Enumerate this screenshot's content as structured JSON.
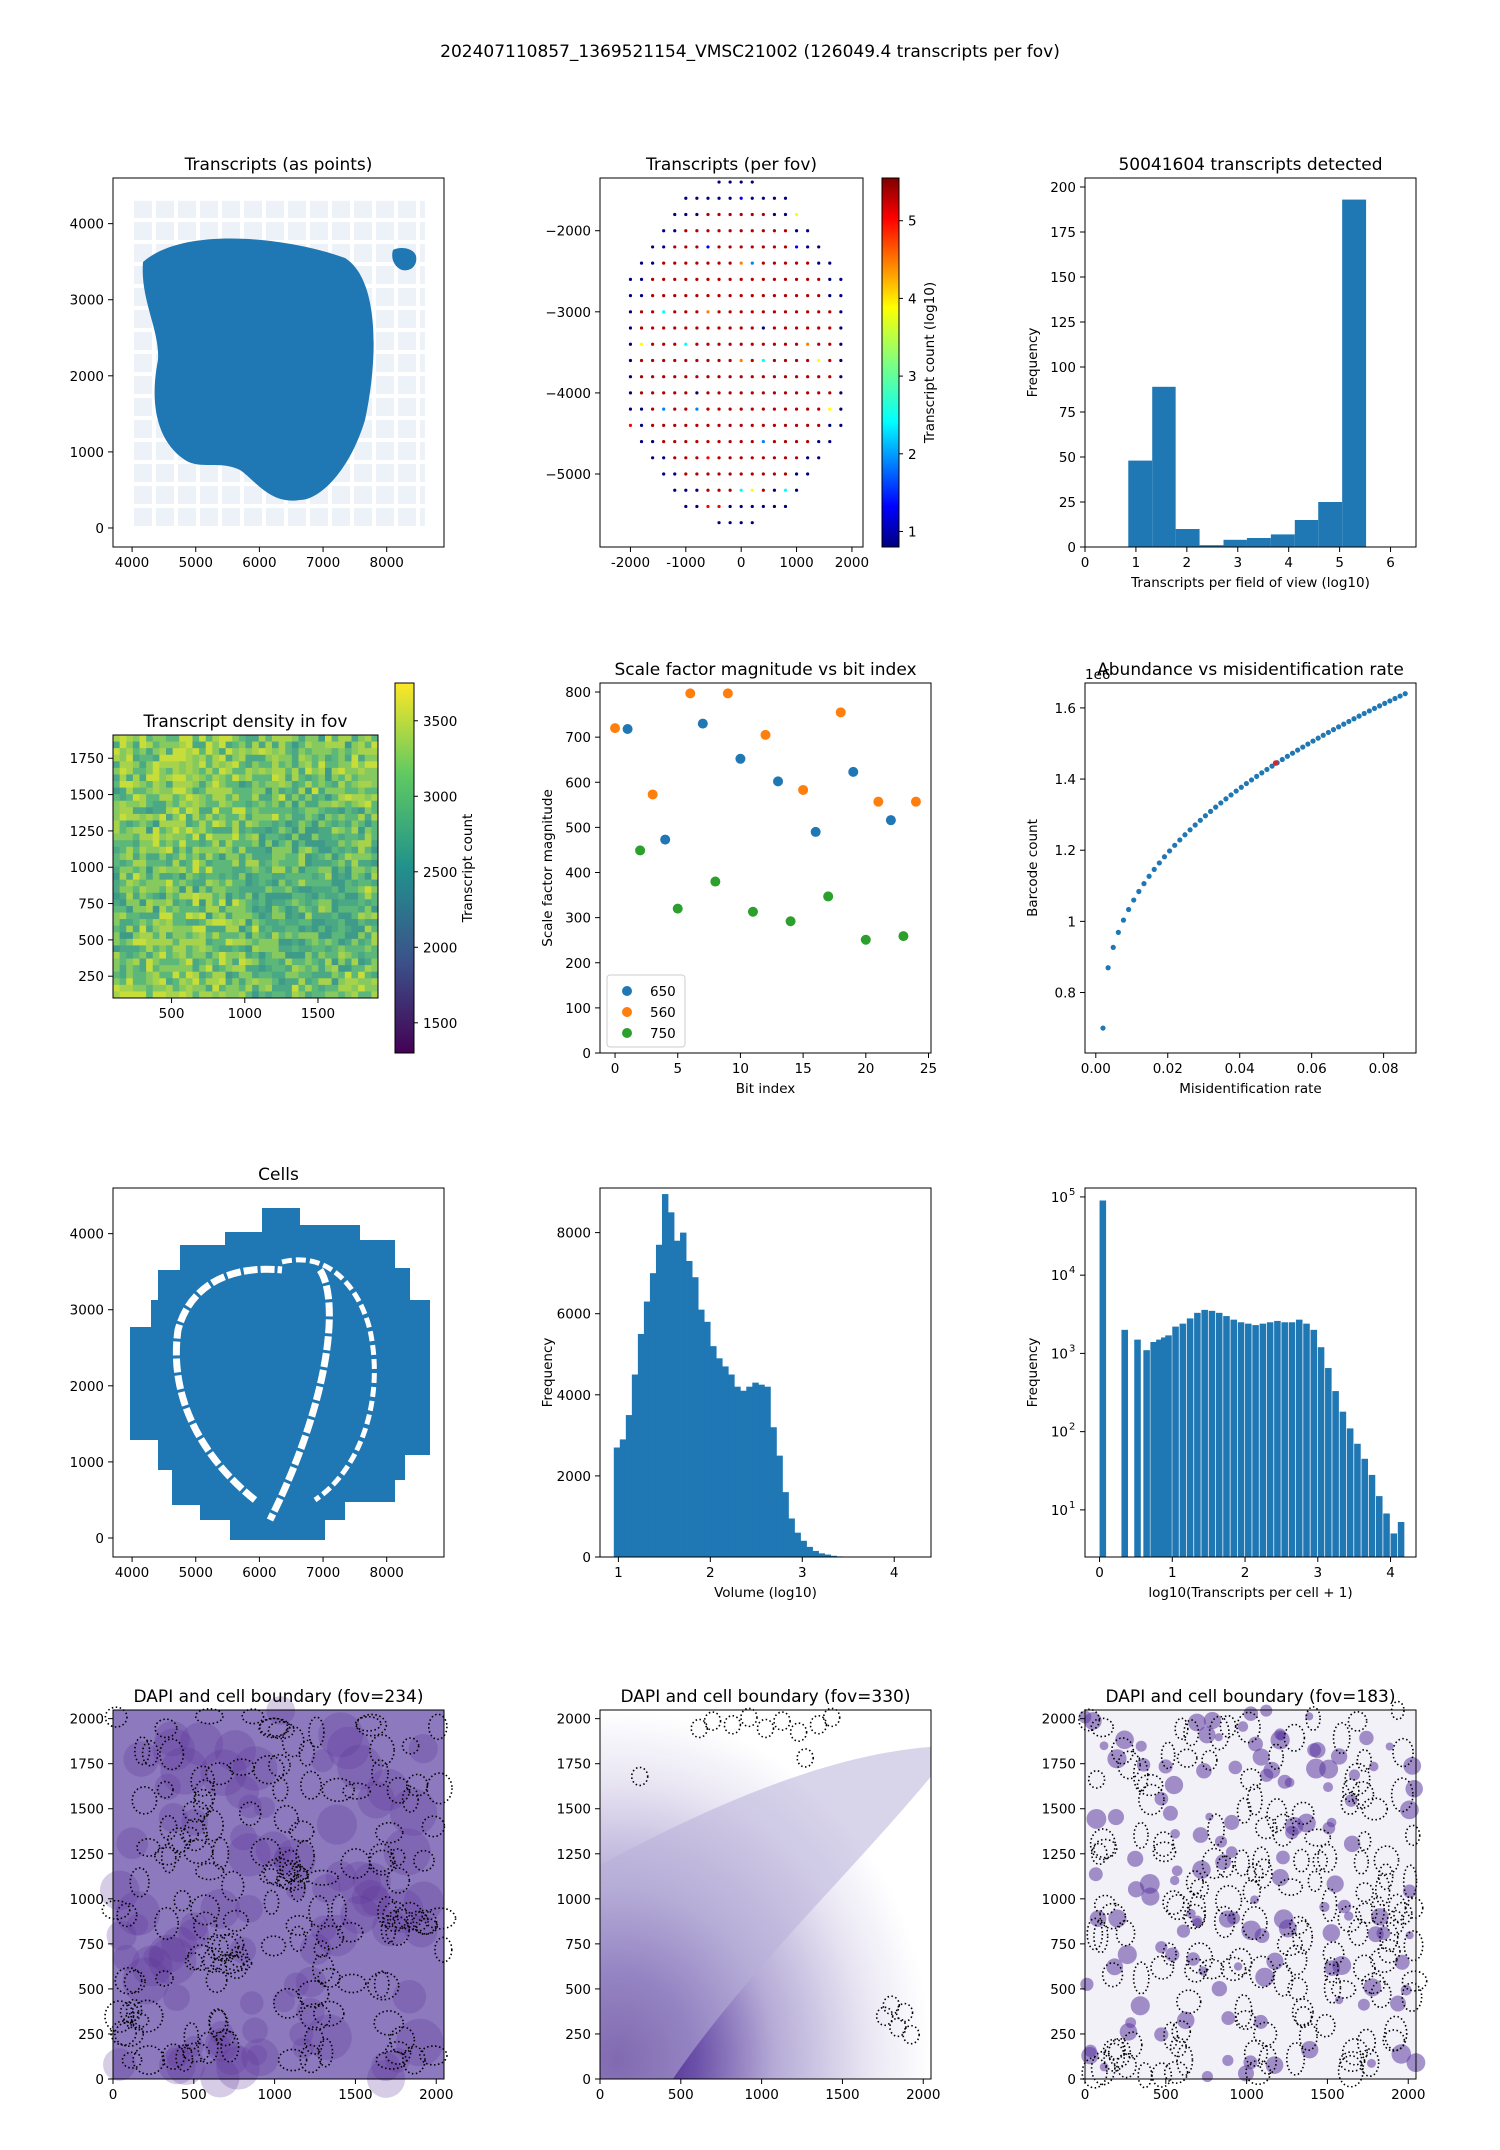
{
  "suptitle": "202407110857_1369521154_VMSC21002 (126049.4 transcripts per fov)",
  "colors": {
    "blue": "#1f77b4",
    "orange": "#ff7f0e",
    "green": "#2ca02c",
    "red": "#d62728",
    "purple": "#4b1d8a"
  },
  "chart_data": [
    {
      "type": "scatter",
      "id": "transcripts_points",
      "title": "Transcripts (as points)",
      "xlim": [
        3700,
        8900
      ],
      "ylim": [
        -250,
        4600
      ],
      "xticks": [
        4000,
        5000,
        6000,
        7000,
        8000
      ],
      "yticks": [
        0,
        1000,
        2000,
        3000,
        4000
      ],
      "region": "dense blob of transcripts centered near (6300, 2200), radius ~1800 with faint tile grid 4000-8600 x 0-4300; small detached patch near (8200, 3550)"
    },
    {
      "type": "scatter",
      "id": "transcripts_per_fov",
      "title": "Transcripts (per fov)",
      "xlim": [
        -2550,
        2200
      ],
      "ylim": [
        -5900,
        -1350
      ],
      "xticks": [
        -2000,
        -1000,
        0,
        1000,
        2000
      ],
      "yticks": [
        -5000,
        -4000,
        -3000,
        -2000
      ],
      "colorbar": {
        "label": "Transcript count (log10)",
        "range": [
          0.8,
          5.55
        ],
        "ticks": [
          1,
          2,
          3,
          4,
          5
        ],
        "cmap": "jet"
      },
      "grid": {
        "x_start": -2200,
        "x_step": 200,
        "y_start": -5600,
        "y_step": 200,
        "center": [
          -100,
          -3500
        ],
        "radius_x": 2100,
        "radius_y": 2130
      },
      "value_rule": "core fovs ~5.3 (red); outer ring fovs ~1 (blue); scattered intermediate values"
    },
    {
      "type": "bar",
      "id": "fov_histogram",
      "title": "50041604 transcripts detected",
      "xlabel": "Transcripts per field of view (log10)",
      "ylabel": "Frequency",
      "xlim": [
        0,
        6.5
      ],
      "ylim": [
        0,
        205
      ],
      "xticks": [
        0,
        1,
        2,
        3,
        4,
        5,
        6
      ],
      "yticks": [
        0,
        25,
        50,
        75,
        100,
        125,
        150,
        175,
        200
      ],
      "bin_edges": [
        0.85,
        1.32,
        1.78,
        2.25,
        2.72,
        3.18,
        3.65,
        4.12,
        4.58,
        5.05,
        5.52
      ],
      "values": [
        48,
        89,
        10,
        1,
        4,
        5,
        7,
        15,
        25,
        193
      ]
    },
    {
      "type": "heatmap",
      "id": "density_in_fov",
      "title": "Transcript density in fov",
      "xlim": [
        100,
        1910
      ],
      "ylim": [
        100,
        1910
      ],
      "xticks": [
        500,
        1000,
        1500
      ],
      "yticks": [
        250,
        500,
        750,
        1000,
        1250,
        1500,
        1750
      ],
      "colorbar": {
        "label": "Transcript count",
        "range": [
          1300,
          3750
        ],
        "ticks": [
          1500,
          2000,
          2500,
          3000,
          3500
        ],
        "cmap": "viridis"
      },
      "mean_value": 3100
    },
    {
      "type": "scatter",
      "id": "scale_factor",
      "title": "Scale factor magnitude vs bit index",
      "xlabel": "Bit index",
      "ylabel": "Scale factor magnitude",
      "xlim": [
        -1.2,
        25.2
      ],
      "ylim": [
        0,
        820
      ],
      "xticks": [
        0,
        5,
        10,
        15,
        20,
        25
      ],
      "yticks": [
        0,
        100,
        200,
        300,
        400,
        500,
        600,
        700,
        800
      ],
      "legend_position": "lower-left",
      "series": [
        {
          "name": "650",
          "x": [
            1,
            4,
            7,
            10,
            13,
            16,
            19,
            22
          ],
          "y": [
            718,
            473,
            730,
            652,
            602,
            490,
            623,
            516
          ]
        },
        {
          "name": "560",
          "x": [
            0,
            3,
            6,
            9,
            12,
            15,
            18,
            21,
            24
          ],
          "y": [
            720,
            573,
            797,
            797,
            705,
            583,
            755,
            557,
            557
          ]
        },
        {
          "name": "750",
          "x": [
            2,
            5,
            8,
            11,
            14,
            17,
            20,
            23
          ],
          "y": [
            449,
            320,
            380,
            313,
            292,
            347,
            251,
            259
          ]
        }
      ]
    },
    {
      "type": "scatter",
      "id": "abundance",
      "title": "Abundance vs misidentification rate",
      "xlabel": "Misidentification rate",
      "ylabel": "Barcode count",
      "offset_label": "1e6",
      "xlim": [
        -0.003,
        0.089
      ],
      "ylim": [
        0.63,
        1.67
      ],
      "xticks": [
        0.0,
        0.02,
        0.04,
        0.06,
        0.08
      ],
      "xtick_labels": [
        "0.00",
        "0.02",
        "0.04",
        "0.06",
        "0.08"
      ],
      "yticks": [
        0.8,
        1.0,
        1.2,
        1.4,
        1.6
      ],
      "highlight": {
        "x": 0.05,
        "y": 1.445
      },
      "x_range": [
        0.002,
        0.086
      ],
      "y_range": [
        0.7,
        1.64
      ]
    },
    {
      "type": "scatter",
      "id": "cells",
      "title": "Cells",
      "xlim": [
        3700,
        8900
      ],
      "ylim": [
        -250,
        4600
      ],
      "xticks": [
        4000,
        5000,
        6000,
        7000,
        8000
      ],
      "yticks": [
        0,
        1000,
        2000,
        3000,
        4000
      ],
      "region": "cell centroids on stepped footprint 4000-8600 x 0-4400 with white tissue-boundary gaps"
    },
    {
      "type": "bar",
      "id": "volume_hist",
      "title": "",
      "xlabel": "Volume (log10)",
      "ylabel": "Frequency",
      "xlim": [
        0.8,
        4.4
      ],
      "ylim": [
        0,
        9100
      ],
      "xticks": [
        1,
        2,
        3,
        4
      ],
      "yticks": [
        0,
        2000,
        4000,
        6000,
        8000
      ],
      "bin_start": 0.95,
      "bin_width": 0.0655,
      "values": [
        2700,
        2900,
        3500,
        4500,
        5500,
        6300,
        7000,
        7700,
        8950,
        8500,
        7800,
        8000,
        7300,
        6900,
        6100,
        5800,
        5200,
        4900,
        4700,
        4500,
        4200,
        4100,
        4200,
        4300,
        4250,
        4200,
        3200,
        2500,
        1600,
        950,
        600,
        400,
        250,
        150,
        90,
        60,
        30,
        15,
        8,
        4,
        2,
        1
      ]
    },
    {
      "type": "bar",
      "id": "transcripts_per_cell",
      "title": "",
      "xlabel": "log10(Transcripts per cell + 1)",
      "ylabel": "Frequency",
      "yscale": "log",
      "xlim": [
        -0.2,
        4.35
      ],
      "ylim": [
        2.5,
        130000
      ],
      "xticks": [
        0,
        1,
        2,
        3,
        4
      ],
      "yticks": [
        10,
        100,
        1000,
        10000,
        100000
      ],
      "ytick_labels": [
        "10",
        "10",
        "10",
        "10",
        "10"
      ],
      "ytick_exps": [
        "1",
        "2",
        "3",
        "4",
        "5"
      ],
      "bins": [
        [
          0.0,
          90000
        ],
        [
          0.301,
          2000
        ],
        [
          0.477,
          1500
        ],
        [
          0.602,
          1100
        ],
        [
          0.699,
          1400
        ],
        [
          0.778,
          1500
        ],
        [
          0.845,
          1600
        ],
        [
          0.903,
          1700
        ],
        [
          1.0,
          2200
        ],
        [
          1.1,
          2400
        ],
        [
          1.2,
          2800
        ],
        [
          1.3,
          3300
        ],
        [
          1.4,
          3600
        ],
        [
          1.5,
          3500
        ],
        [
          1.6,
          3300
        ],
        [
          1.7,
          3000
        ],
        [
          1.8,
          2700
        ],
        [
          1.9,
          2500
        ],
        [
          2.0,
          2400
        ],
        [
          2.1,
          2300
        ],
        [
          2.2,
          2400
        ],
        [
          2.3,
          2500
        ],
        [
          2.4,
          2600
        ],
        [
          2.5,
          2500
        ],
        [
          2.6,
          2500
        ],
        [
          2.7,
          2700
        ],
        [
          2.8,
          2400
        ],
        [
          2.9,
          2000
        ],
        [
          3.0,
          1200
        ],
        [
          3.1,
          650
        ],
        [
          3.2,
          330
        ],
        [
          3.3,
          180
        ],
        [
          3.4,
          110
        ],
        [
          3.5,
          70
        ],
        [
          3.6,
          45
        ],
        [
          3.7,
          28
        ],
        [
          3.8,
          15
        ],
        [
          3.9,
          9
        ],
        [
          4.0,
          5
        ],
        [
          4.1,
          7
        ]
      ],
      "bin_width": 0.1
    },
    {
      "type": "heatmap",
      "id": "dapi_234",
      "title": "DAPI and cell boundary (fov=234)",
      "xlim": [
        0,
        2048
      ],
      "ylim": [
        0,
        2048
      ],
      "xticks": [
        0,
        500,
        1000,
        1500,
        2000
      ],
      "yticks": [
        0,
        250,
        500,
        750,
        1000,
        1250,
        1500,
        1750,
        2000
      ],
      "pattern": "dense tissue, purple everywhere with many dotted cell outlines"
    },
    {
      "type": "heatmap",
      "id": "dapi_330",
      "title": "DAPI and cell boundary (fov=330)",
      "xlim": [
        0,
        2048
      ],
      "ylim": [
        0,
        2048
      ],
      "xticks": [
        0,
        500,
        1000,
        1500,
        2000
      ],
      "yticks": [
        0,
        250,
        500,
        750,
        1000,
        1250,
        1500,
        1750,
        2000
      ],
      "pattern": "diagonal tissue edge from lower-left, dark purple at bottom-left, sparse outlines at top and bottom-right"
    },
    {
      "type": "heatmap",
      "id": "dapi_183",
      "title": "DAPI and cell boundary (fov=183)",
      "xlim": [
        0,
        2048
      ],
      "ylim": [
        0,
        2048
      ],
      "xticks": [
        0,
        500,
        1000,
        1500,
        2000
      ],
      "yticks": [
        0,
        250,
        500,
        750,
        1000,
        1250,
        1500,
        1750,
        2000
      ],
      "pattern": "light background with scattered purple nuclei and dotted outlines"
    }
  ]
}
